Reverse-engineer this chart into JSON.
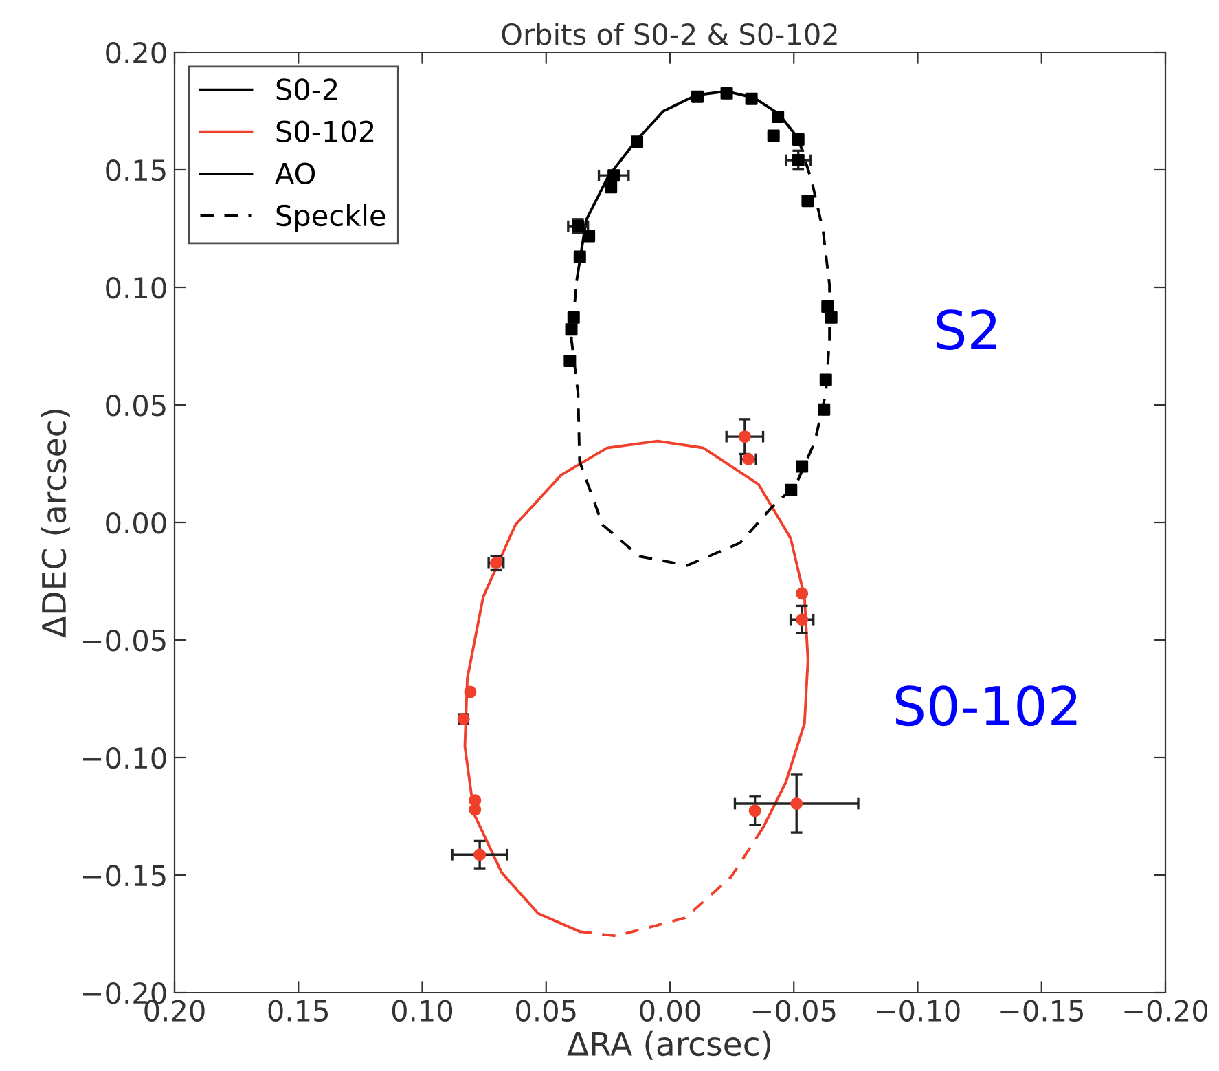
{
  "chart_data": {
    "type": "line",
    "title": "Orbits of S0-2 & S0-102",
    "xlabel": "ΔRA (arcsec)",
    "ylabel": "ΔDEC (arcsec)",
    "xlim": [
      0.2,
      -0.2
    ],
    "ylim": [
      -0.2,
      0.2
    ],
    "xticks": [
      {
        "value": 0.2,
        "label": "0.20"
      },
      0.15,
      {
        "value": 0.1,
        "label": "0.10"
      },
      0.05,
      {
        "value": 0,
        "label": "0.00"
      },
      {
        "value": -0.05,
        "label": "−0.05"
      },
      {
        "value": -0.1,
        "label": "−0.10"
      },
      {
        "value": -0.15,
        "label": "−0.15"
      },
      {
        "value": -0.2,
        "label": "−0.20"
      }
    ],
    "yticks": [
      {
        "value": -0.2,
        "label": "−0.20"
      },
      {
        "value": -0.15,
        "label": "−0.15"
      },
      {
        "value": -0.1,
        "label": "−0.10"
      },
      {
        "value": -0.05,
        "label": "−0.05"
      },
      {
        "value": 0,
        "label": "0.00"
      },
      0.05,
      {
        "value": 0.1,
        "label": "0.10"
      },
      0.15,
      {
        "value": 0.2,
        "label": "0.20"
      }
    ],
    "grid": false,
    "legend": "top left",
    "annotations": [
      "S2",
      "S0-102"
    ],
    "series": [
      {
        "name": "S0-2",
        "color": "#000000",
        "line_style": "solid",
        "marker": "none",
        "x": [
          0.0376,
          0.0338,
          0.0249,
          0.0138,
          0.0027,
          -0.0107,
          -0.0229,
          -0.034,
          -0.044,
          -0.0518
        ],
        "values": [
          0.1033,
          0.1287,
          0.1472,
          0.1622,
          0.1749,
          0.1818,
          0.1834,
          0.1806,
          0.1737,
          0.1633
        ]
      },
      {
        "name": "S0-102",
        "color": "#f0402c",
        "line_style": "solid",
        "marker": "none",
        "x": [
          -0.0376,
          -0.0468,
          -0.0543,
          -0.0557,
          -0.0543,
          -0.0487,
          -0.0357,
          -0.0135,
          0.005,
          0.0254,
          0.0439,
          0.0624,
          0.0754,
          0.0818,
          0.0828,
          0.0791,
          0.0679,
          0.0532,
          0.0365
        ],
        "values": [
          -0.1298,
          -0.1105,
          -0.0855,
          -0.0586,
          -0.0317,
          -0.0067,
          0.0163,
          0.0317,
          0.0346,
          0.0317,
          0.0202,
          -0.001,
          -0.0317,
          -0.0663,
          -0.0952,
          -0.124,
          -0.149,
          -0.1663,
          -0.174
        ]
      },
      {
        "name": "AO",
        "color": "#000000",
        "line_style": "solid",
        "marker": "none"
      },
      {
        "name": "Speckle",
        "color": "#000000",
        "line_style": "dashed",
        "marker": "none"
      },
      {
        "color": "#000000",
        "line_style": "dashed",
        "marker": "none",
        "x": [
          -0.0518,
          -0.0573,
          -0.0618,
          -0.0644,
          -0.0644,
          -0.0629,
          -0.0584,
          -0.0507,
          -0.0413,
          -0.0283,
          -0.007,
          0.0124,
          0.0272,
          0.0365,
          0.0371,
          0.0398,
          0.0376
        ],
        "values": [
          0.1633,
          0.1449,
          0.1241,
          0.101,
          0.078,
          0.0549,
          0.0341,
          0.0157,
          0.0067,
          -0.0087,
          -0.0183,
          -0.0144,
          -0.001,
          0.026,
          0.0549,
          0.078,
          0.1033
        ]
      },
      {
        "color": "#f0402c",
        "line_style": "dashed",
        "marker": "none",
        "x": [
          -0.0376,
          -0.0246,
          -0.0061,
          0.0217,
          0.0365
        ],
        "values": [
          -0.1298,
          -0.1509,
          -0.1682,
          -0.1759,
          -0.174
        ]
      },
      {
        "type": "scatter",
        "color": "#000000",
        "marker": "square",
        "x": [
          -0.0111,
          -0.0229,
          -0.0329,
          -0.0436,
          -0.0518,
          -0.0418,
          0.0133,
          0.0227,
          0.0238,
          0.0371,
          0.0327,
          0.0364,
          0.0389,
          0.0398,
          0.0404,
          -0.0518,
          -0.0556,
          -0.0636,
          -0.0651,
          -0.0629,
          -0.0622,
          -0.0533,
          -0.0489
        ],
        "values": [
          0.1811,
          0.1825,
          0.1802,
          0.1725,
          0.1629,
          0.1645,
          0.1619,
          0.1476,
          0.1426,
          0.126,
          0.1218,
          0.113,
          0.0872,
          0.0821,
          0.0687,
          0.1541,
          0.1368,
          0.0918,
          0.0872,
          0.0607,
          0.048,
          0.0238,
          0.0138
        ],
        "xerrors": [
          null,
          null,
          null,
          null,
          null,
          null,
          null,
          0.006,
          null,
          0.004,
          null,
          null,
          null,
          null,
          null,
          0.005,
          null,
          null,
          null,
          null,
          null,
          null,
          null
        ],
        "errors": [
          null,
          null,
          null,
          null,
          null,
          null,
          null,
          0.002,
          null,
          0.003,
          null,
          null,
          null,
          null,
          null,
          0.004,
          null,
          null,
          null,
          null,
          null,
          null,
          null
        ]
      },
      {
        "type": "scatter",
        "color": "#f0402c",
        "marker": "circle",
        "x": [
          -0.0302,
          -0.0317,
          0.0702,
          -0.0533,
          -0.0533,
          0.0806,
          0.0833,
          0.0787,
          0.0787,
          0.0768,
          -0.0343,
          -0.0511
        ],
        "values": [
          0.0365,
          0.0269,
          -0.0173,
          -0.0302,
          -0.0413,
          -0.0721,
          -0.0836,
          -0.1182,
          -0.1221,
          -0.1413,
          -0.1226,
          -0.1196
        ],
        "xerrors": [
          0.0074,
          0.003,
          0.003,
          null,
          0.0046,
          null,
          null,
          null,
          null,
          0.0111,
          null,
          0.0249
        ],
        "errors": [
          0.0074,
          null,
          0.003,
          null,
          0.0058,
          null,
          0.002,
          null,
          null,
          0.0058,
          0.006,
          0.0123
        ]
      }
    ]
  }
}
